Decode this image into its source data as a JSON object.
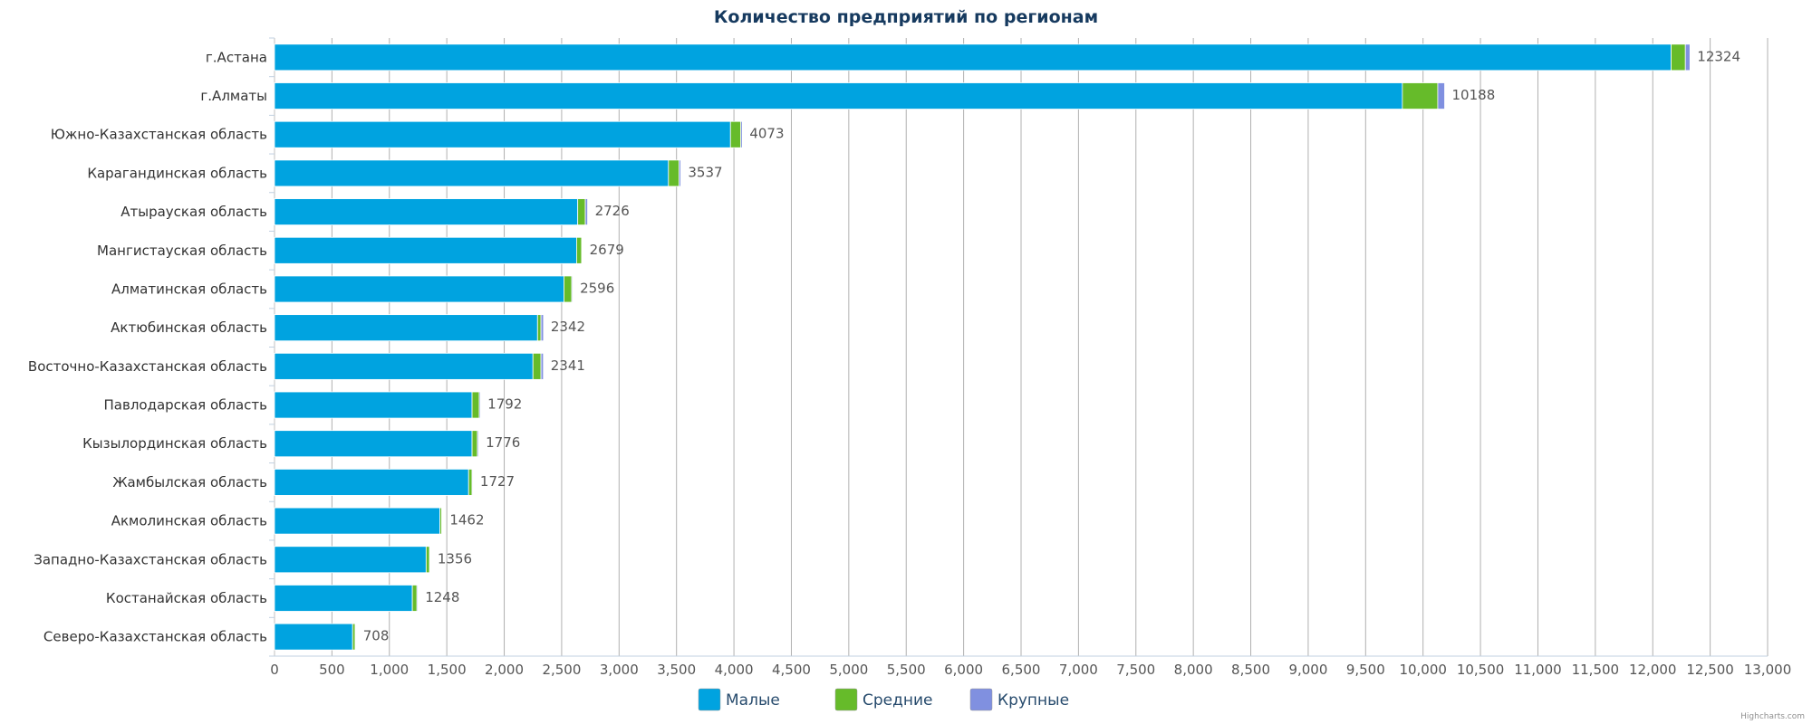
{
  "chart_data": {
    "type": "bar",
    "orientation": "horizontal",
    "stacked": true,
    "title": "Количество предприятий по регионам",
    "categories": [
      "г.Астана",
      "г.Алматы",
      "Южно-Казахстанская область",
      "Карагандинская область",
      "Атырауская область",
      "Мангистауская область",
      "Алматинская область",
      "Актюбинская область",
      "Восточно-Казахстанская область",
      "Павлодарская область",
      "Кызылординская область",
      "Жамбылская область",
      "Акмолинская область",
      "Западно-Казахстанская область",
      "Костанайская область",
      "Северо-Казахстанская область"
    ],
    "series": [
      {
        "name": "Малые",
        "color": "#00a3e0",
        "values": [
          12160,
          9820,
          3970,
          3430,
          2640,
          2630,
          2520,
          2290,
          2250,
          1720,
          1720,
          1690,
          1440,
          1320,
          1200,
          680
        ]
      },
      {
        "name": "Средние",
        "color": "#66bb2a",
        "values": [
          124,
          308,
          90,
          92,
          66,
          44,
          68,
          30,
          70,
          62,
          46,
          30,
          16,
          30,
          40,
          22
        ]
      },
      {
        "name": "Крупные",
        "color": "#8090e0",
        "values": [
          40,
          60,
          13,
          15,
          20,
          5,
          8,
          22,
          21,
          10,
          10,
          7,
          6,
          6,
          8,
          6
        ]
      }
    ],
    "totals": [
      12324,
      10188,
      4073,
      3537,
      2726,
      2679,
      2596,
      2342,
      2341,
      1792,
      1776,
      1727,
      1462,
      1356,
      1248,
      708
    ],
    "xlim": [
      0,
      13000
    ],
    "x_ticks": [
      "0",
      "500",
      "1,000",
      "1,500",
      "2,000",
      "2,500",
      "3,000",
      "3,500",
      "4,000",
      "4,500",
      "5,000",
      "5,500",
      "6,000",
      "6,500",
      "7,000",
      "7,500",
      "8,000",
      "8,500",
      "9,000",
      "9,500",
      "10,000",
      "10,500",
      "11,000",
      "11,500",
      "12,000",
      "12,500",
      "13,000"
    ],
    "x_tick_values": [
      0,
      500,
      1000,
      1500,
      2000,
      2500,
      3000,
      3500,
      4000,
      4500,
      5000,
      5500,
      6000,
      6500,
      7000,
      7500,
      8000,
      8500,
      9000,
      9500,
      10000,
      10500,
      11000,
      11500,
      12000,
      12500,
      13000
    ],
    "grid": true,
    "legend_position": "bottom-center"
  },
  "credits": "Highcharts.com"
}
